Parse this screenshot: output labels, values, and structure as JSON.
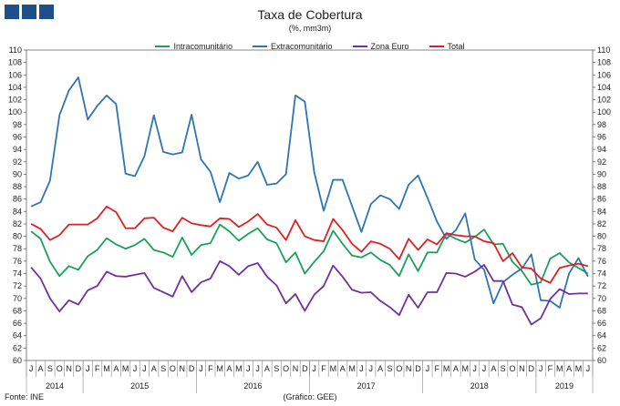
{
  "header": {
    "title": "Taxa de Cobertura",
    "subtitle": "(%, mm3m)"
  },
  "footer": {
    "source": "Fonte: INE",
    "credit": "(Gráfico: GEE)"
  },
  "logo": {
    "color": "#1f4e8c"
  },
  "chart_data": {
    "type": "line",
    "title": "Taxa de Cobertura",
    "subtitle": "(%, mm3m)",
    "ylim": [
      60,
      110
    ],
    "ytick_step": 2,
    "y_axis_both_sides": true,
    "grid": false,
    "legend_position": "top",
    "month_labels": [
      "J",
      "A",
      "S",
      "O",
      "N",
      "D",
      "J",
      "F",
      "M",
      "A",
      "M",
      "J",
      "J",
      "A",
      "S",
      "O",
      "N",
      "D",
      "J",
      "F",
      "M",
      "A",
      "M",
      "J",
      "J",
      "A",
      "S",
      "O",
      "N",
      "D",
      "J",
      "F",
      "M",
      "A",
      "M",
      "J",
      "J",
      "A",
      "S",
      "O",
      "N",
      "D",
      "J",
      "F",
      "M",
      "A",
      "M",
      "J",
      "J",
      "A",
      "S",
      "O",
      "N",
      "D",
      "J",
      "F",
      "M",
      "A",
      "M",
      "J"
    ],
    "x": [
      "2014-07",
      "2014-08",
      "2014-09",
      "2014-10",
      "2014-11",
      "2014-12",
      "2015-01",
      "2015-02",
      "2015-03",
      "2015-04",
      "2015-05",
      "2015-06",
      "2015-07",
      "2015-08",
      "2015-09",
      "2015-10",
      "2015-11",
      "2015-12",
      "2016-01",
      "2016-02",
      "2016-03",
      "2016-04",
      "2016-05",
      "2016-06",
      "2016-07",
      "2016-08",
      "2016-09",
      "2016-10",
      "2016-11",
      "2016-12",
      "2017-01",
      "2017-02",
      "2017-03",
      "2017-04",
      "2017-05",
      "2017-06",
      "2017-07",
      "2017-08",
      "2017-09",
      "2017-10",
      "2017-11",
      "2017-12",
      "2018-01",
      "2018-02",
      "2018-03",
      "2018-04",
      "2018-05",
      "2018-06",
      "2018-07",
      "2018-08",
      "2018-09",
      "2018-10",
      "2018-11",
      "2018-12",
      "2019-01",
      "2019-02",
      "2019-03",
      "2019-04",
      "2019-05",
      "2019-06"
    ],
    "year_groups": [
      {
        "label": "2014",
        "start": 0,
        "end": 5
      },
      {
        "label": "2015",
        "start": 6,
        "end": 17
      },
      {
        "label": "2016",
        "start": 18,
        "end": 29
      },
      {
        "label": "2017",
        "start": 30,
        "end": 41
      },
      {
        "label": "2018",
        "start": 42,
        "end": 53
      },
      {
        "label": "2019",
        "start": 54,
        "end": 59
      }
    ],
    "series": [
      {
        "name": "Intracomunitário",
        "color": "#1aa05a",
        "values": [
          80.8,
          79.6,
          75.9,
          73.6,
          75.2,
          74.6,
          76.8,
          77.8,
          79.7,
          78.7,
          78.0,
          78.6,
          79.6,
          77.8,
          77.4,
          76.7,
          79.8,
          77.0,
          78.6,
          78.9,
          81.9,
          80.8,
          79.3,
          80.4,
          81.3,
          79.5,
          78.9,
          75.8,
          77.4,
          74.0,
          75.9,
          77.6,
          80.9,
          78.8,
          76.9,
          76.6,
          77.4,
          76.2,
          75.4,
          73.6,
          77.1,
          74.4,
          77.4,
          77.4,
          80.4,
          79.6,
          79.0,
          79.9,
          81.1,
          78.7,
          78.8,
          75.9,
          74.4,
          72.2,
          72.6,
          76.4,
          77.3,
          75.8,
          74.9,
          74.0
        ]
      },
      {
        "name": "Extracomunitário",
        "color": "#2e75b6",
        "values": [
          84.8,
          85.5,
          89.0,
          99.5,
          103.5,
          105.6,
          98.8,
          101.0,
          102.7,
          101.3,
          90.1,
          89.7,
          92.9,
          99.5,
          93.6,
          93.2,
          93.5,
          99.6,
          92.4,
          90.4,
          85.5,
          90.2,
          89.3,
          89.8,
          92.0,
          88.3,
          88.5,
          90.0,
          102.7,
          101.7,
          90.3,
          84.1,
          89.1,
          89.1,
          84.9,
          80.7,
          85.2,
          86.6,
          86.0,
          84.4,
          88.3,
          89.8,
          86.2,
          82.4,
          79.6,
          81.0,
          83.7,
          76.3,
          74.6,
          69.2,
          72.6,
          73.8,
          74.8,
          77.1,
          69.7,
          69.6,
          68.5,
          74.0,
          76.5,
          73.5
        ]
      },
      {
        "name": "Zona Euro",
        "color": "#7030a0",
        "values": [
          75.0,
          73.2,
          70.0,
          67.9,
          69.7,
          69.0,
          71.3,
          72.0,
          74.3,
          73.6,
          73.5,
          73.8,
          74.1,
          71.7,
          71.0,
          70.3,
          73.6,
          71.0,
          72.6,
          73.2,
          76.0,
          75.2,
          73.8,
          75.2,
          75.7,
          73.5,
          72.1,
          69.2,
          70.7,
          68.0,
          70.6,
          72.0,
          75.3,
          73.5,
          71.4,
          70.9,
          71.0,
          69.6,
          68.6,
          67.3,
          70.6,
          68.5,
          71.0,
          71.0,
          74.1,
          74.0,
          73.5,
          74.3,
          75.4,
          72.8,
          72.8,
          69.0,
          68.6,
          65.8,
          66.8,
          69.9,
          71.5,
          70.7,
          70.8,
          70.8
        ]
      },
      {
        "name": "Total",
        "color": "#e02020",
        "values": [
          82.0,
          81.2,
          79.4,
          80.2,
          81.9,
          81.9,
          81.9,
          82.9,
          84.8,
          83.9,
          81.3,
          81.3,
          82.9,
          83.0,
          81.4,
          80.8,
          83.0,
          82.1,
          81.8,
          81.6,
          82.9,
          82.8,
          81.5,
          82.4,
          83.6,
          81.9,
          81.4,
          79.4,
          82.6,
          80.0,
          79.4,
          79.2,
          82.8,
          81.0,
          78.8,
          77.5,
          79.2,
          78.8,
          78.0,
          76.3,
          79.6,
          77.8,
          79.5,
          78.7,
          80.5,
          80.2,
          80.0,
          80.0,
          79.2,
          78.9,
          76.0,
          77.3,
          75.0,
          74.8,
          73.2,
          72.5,
          74.9,
          75.3,
          75.6,
          75.2
        ]
      }
    ]
  }
}
